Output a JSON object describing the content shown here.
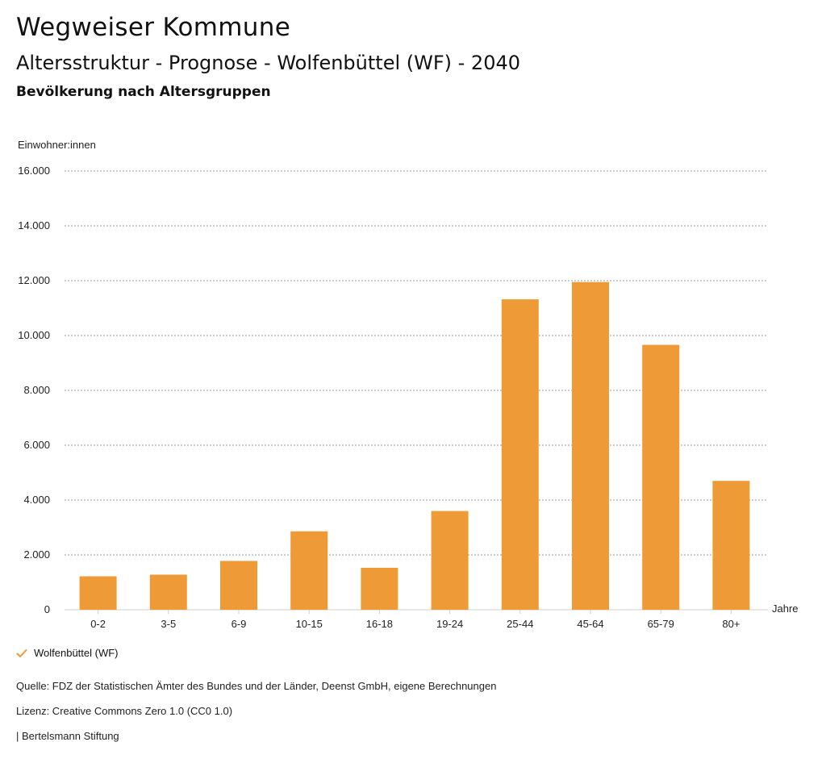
{
  "header": {
    "title": "Wegweiser Kommune",
    "subtitle": "Altersstruktur - Prognose - Wolfenbüttel (WF) - 2040",
    "subsubtitle": "Bevölkerung nach Altersgruppen"
  },
  "chart_data": {
    "type": "bar",
    "ylabel": "Einwohner:innen",
    "xlabel": "Jahre",
    "categories": [
      "0-2",
      "3-5",
      "6-9",
      "10-15",
      "16-18",
      "19-24",
      "25-44",
      "45-64",
      "65-79",
      "80+"
    ],
    "series": [
      {
        "name": "Wolfenbüttel (WF)",
        "values": [
          1220,
          1280,
          1780,
          2860,
          1530,
          3600,
          11320,
          11950,
          9660,
          4700
        ]
      }
    ],
    "ylim": [
      0,
      16000
    ],
    "yticks": [
      0,
      2000,
      4000,
      6000,
      8000,
      10000,
      12000,
      14000,
      16000
    ],
    "ytick_labels": [
      "0",
      "2.000",
      "4.000",
      "6.000",
      "8.000",
      "10.000",
      "12.000",
      "14.000",
      "16.000"
    ],
    "grid": true,
    "bar_color": "#ee9a37",
    "legend_position": "bottom-left"
  },
  "legend": {
    "label": "Wolfenbüttel (WF)",
    "icon": "check-icon",
    "color": "#ee9a37"
  },
  "footer": {
    "source": "Quelle: FDZ der Statistischen Ämter des Bundes und der Länder, Deenst GmbH, eigene Berechnungen",
    "license": "Lizenz: Creative Commons Zero 1.0 (CC0 1.0)",
    "publisher": "| Bertelsmann Stiftung"
  }
}
